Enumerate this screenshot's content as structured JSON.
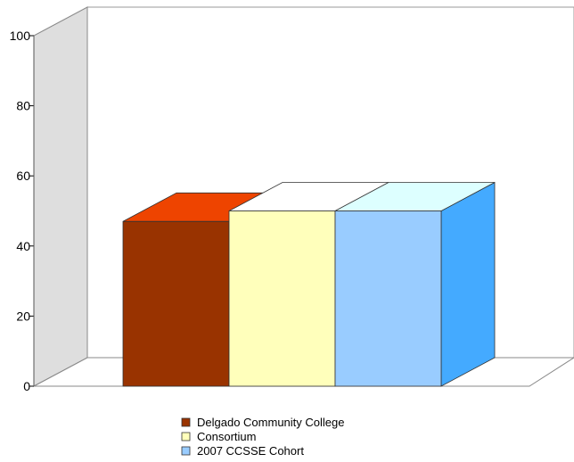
{
  "chart_data": {
    "type": "bar",
    "categories": [
      ""
    ],
    "series": [
      {
        "name": "Delgado Community College",
        "values": [
          47
        ],
        "colors": {
          "front": "#993300",
          "top": "#ee4400",
          "side": "#cc3300"
        }
      },
      {
        "name": "Consortium",
        "values": [
          50
        ],
        "colors": {
          "front": "#ffffbb",
          "top": "#ffffff",
          "side": "#ffffdd"
        }
      },
      {
        "name": "2007 CCSSE Cohort",
        "values": [
          50
        ],
        "colors": {
          "front": "#99ccff",
          "top": "#ddffff",
          "side": "#44aaff"
        }
      }
    ],
    "title": "",
    "xlabel": "",
    "ylabel": "",
    "ylim": [
      0,
      100
    ],
    "yticks": [
      0,
      20,
      40,
      60,
      80,
      100
    ],
    "grid": false,
    "legend_position": "bottom",
    "style": "3d-bar"
  }
}
